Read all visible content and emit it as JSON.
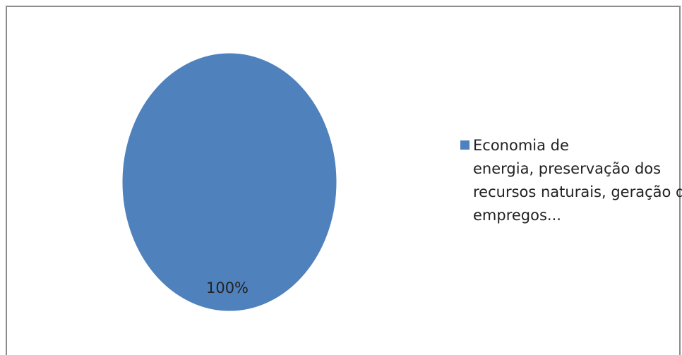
{
  "chart_data": {
    "type": "pie",
    "slices": [
      {
        "label": "Economia de energia, preservação dos recursos naturais, geração de empregos...",
        "value": 100,
        "value_label": "100%",
        "color": "#4f81bd"
      }
    ],
    "legend": {
      "placement": "right",
      "entries": [
        {
          "lines": [
            "Economia de",
            "energia, preservação dos",
            "recursos naturais, geração de",
            "empregos..."
          ],
          "color": "#4f81bd"
        }
      ]
    },
    "title": ""
  }
}
